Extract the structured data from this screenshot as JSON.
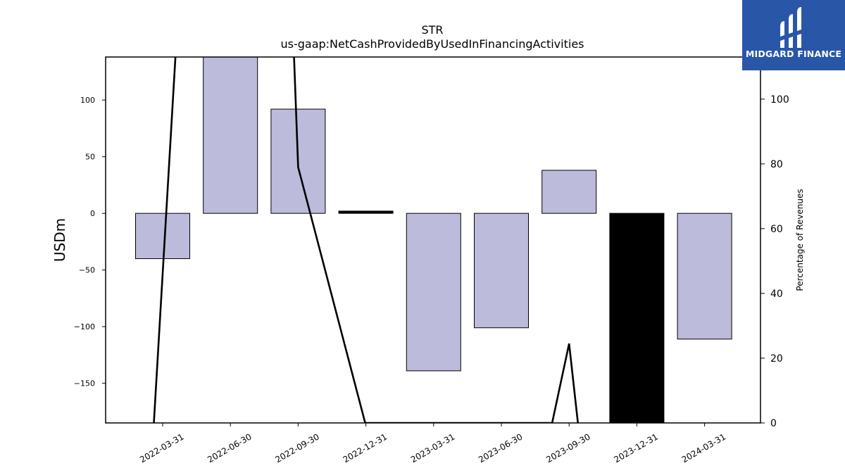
{
  "chart_data": {
    "type": "bar",
    "title": "STR",
    "subtitle": "us-gaap:NetCashProvidedByUsedInFinancingActivities",
    "ylabel": "USDm",
    "y2label": "Percentage of Revenues",
    "categories": [
      "2022-03-31",
      "2022-06-30",
      "2022-09-30",
      "2022-12-31",
      "2023-03-31",
      "2023-06-30",
      "2023-09-30",
      "2023-12-31",
      "2024-03-31"
    ],
    "series": [
      {
        "axis": "left",
        "type": "bar",
        "values": [
          -40,
          138,
          92,
          2,
          -139,
          -101,
          38,
          -185,
          -111
        ],
        "colors": [
          "#bdbbdb",
          "#bdbbdb",
          "#bdbbdb",
          "#000000",
          "#bdbbdb",
          "#bdbbdb",
          "#bdbbdb",
          "#000000",
          "#bdbbdb"
        ]
      },
      {
        "axis": "right",
        "type": "line",
        "points": [
          [
            -0.13,
            0
          ],
          [
            0.25,
            135
          ],
          [
            1.9,
            135
          ],
          [
            2.0,
            79
          ],
          [
            2.99,
            0
          ],
          [
            5.75,
            0
          ],
          [
            6.0,
            24.5
          ],
          [
            6.13,
            0
          ]
        ],
        "color": "#000000"
      }
    ],
    "ylim": [
      -185,
      138
    ],
    "yticks": [
      -150,
      -100,
      -50,
      0,
      50,
      100
    ],
    "y2lim": [
      0,
      113
    ],
    "y2ticks": [
      0,
      20,
      40,
      60,
      80,
      100
    ],
    "grid": false
  },
  "logo": {
    "text": "MIDGARD FINANCE",
    "color": "#2a56a8"
  }
}
